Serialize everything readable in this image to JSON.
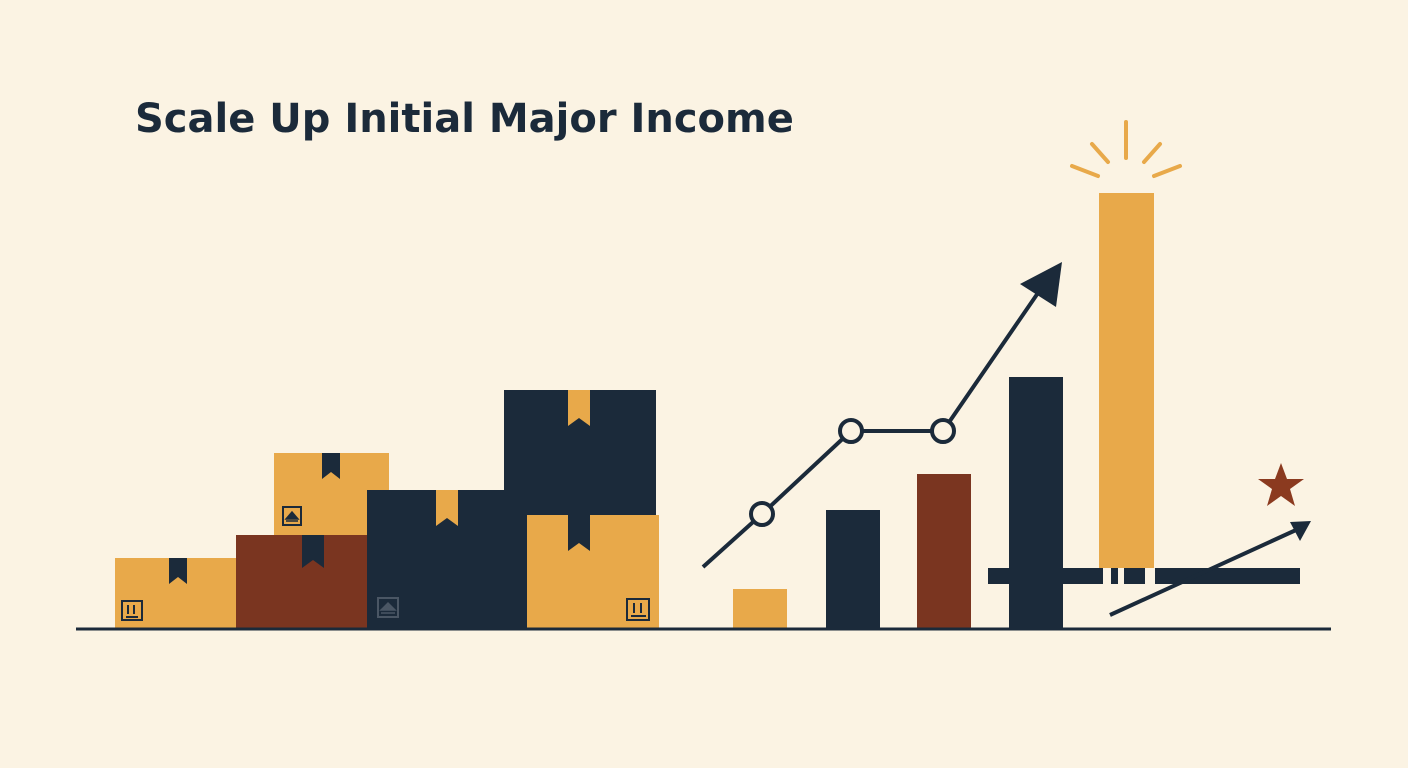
{
  "title": "Scale Up Initial Major Income"
}
